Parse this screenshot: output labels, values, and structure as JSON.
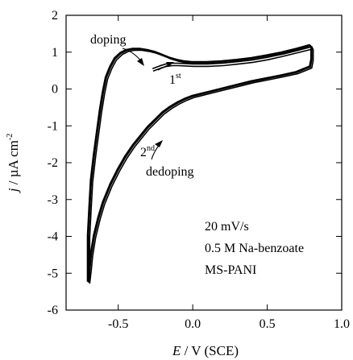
{
  "chart_data": {
    "type": "line",
    "title": "",
    "xlabel_italic": "E",
    "xlabel_rest": " / V (SCE)",
    "ylabel_italic": "j",
    "ylabel_rest": " / µA cm",
    "ylabel_exp": "-2",
    "xlim": [
      -0.85,
      1.0
    ],
    "ylim": [
      -6,
      2
    ],
    "xticks": [
      -0.5,
      0.0,
      0.5,
      1.0
    ],
    "xtick_labels": [
      "-0.5",
      "0.0",
      "0.5",
      "1.0"
    ],
    "yticks": [
      -6,
      -5,
      -4,
      -3,
      -2,
      -1,
      0,
      1,
      2
    ],
    "ytick_labels": [
      "-6",
      "-5",
      "-4",
      "-3",
      "-2",
      "-1",
      "0",
      "1",
      "2"
    ],
    "grid": false,
    "series": [
      {
        "cycle": "2nd",
        "x": [
          -0.7,
          -0.7,
          -0.7,
          -0.69,
          -0.68,
          -0.66,
          -0.64,
          -0.62,
          -0.6,
          -0.58,
          -0.55,
          -0.52,
          -0.48,
          -0.44,
          -0.4,
          -0.35,
          -0.3,
          -0.25,
          -0.2,
          -0.15,
          -0.1,
          -0.05,
          0.0,
          0.1,
          0.2,
          0.3,
          0.4,
          0.5,
          0.6,
          0.7,
          0.79,
          0.8,
          0.8,
          0.79,
          0.7,
          0.6,
          0.5,
          0.4,
          0.3,
          0.2,
          0.1,
          0.05,
          0.0,
          -0.05,
          -0.1,
          -0.15,
          -0.2,
          -0.25,
          -0.3,
          -0.35,
          -0.4,
          -0.45,
          -0.5,
          -0.55,
          -0.6,
          -0.63,
          -0.66,
          -0.68,
          -0.69,
          -0.7
        ],
        "y": [
          -5.25,
          -4.8,
          -4.0,
          -3.2,
          -2.5,
          -1.8,
          -1.2,
          -0.6,
          -0.1,
          0.3,
          0.6,
          0.82,
          0.97,
          1.05,
          1.08,
          1.08,
          1.05,
          1.0,
          0.92,
          0.84,
          0.78,
          0.74,
          0.72,
          0.72,
          0.74,
          0.78,
          0.83,
          0.9,
          0.98,
          1.08,
          1.18,
          1.1,
          0.8,
          0.6,
          0.45,
          0.36,
          0.28,
          0.2,
          0.1,
          0.0,
          -0.1,
          -0.15,
          -0.2,
          -0.28,
          -0.38,
          -0.5,
          -0.65,
          -0.85,
          -1.05,
          -1.3,
          -1.55,
          -1.85,
          -2.2,
          -2.6,
          -3.1,
          -3.5,
          -4.0,
          -4.5,
          -4.9,
          -5.25
        ]
      },
      {
        "cycle": "1st",
        "x": [
          -0.27,
          -0.22,
          -0.18,
          -0.14,
          -0.1,
          -0.05,
          0.0,
          0.1,
          0.2,
          0.3,
          0.4,
          0.5,
          0.6,
          0.7,
          0.8
        ],
        "y": [
          0.55,
          0.63,
          0.68,
          0.7,
          0.7,
          0.69,
          0.68,
          0.68,
          0.7,
          0.74,
          0.79,
          0.86,
          0.95,
          1.05,
          1.15
        ]
      }
    ],
    "annotations": {
      "doping": "doping",
      "dedoping": "dedoping",
      "first_main": "1",
      "first_sup": "st",
      "second_main": "2",
      "second_sup": "nd",
      "info_1": "20 mV/s",
      "info_2": "0.5 M Na-benzoate",
      "info_3": "MS-PANI"
    }
  }
}
